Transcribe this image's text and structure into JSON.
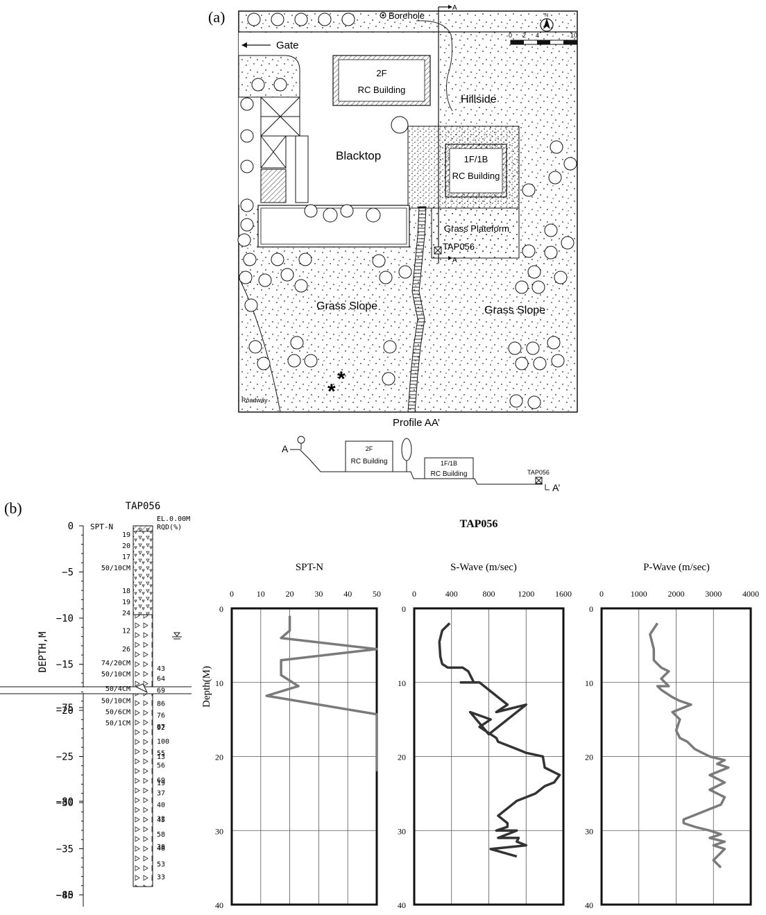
{
  "panel_a": {
    "label": "(a)",
    "map": {
      "borehole": "Borehole",
      "section_marker": "A",
      "gate": "Gate",
      "north": "N",
      "scale_ticks": [
        "0",
        "2",
        "4",
        "10"
      ],
      "building_2f": {
        "line1": "2F",
        "line2": "RC Building"
      },
      "hillside": "Hillside",
      "blacktop": "Blacktop",
      "building_1f": {
        "line1": "1F/1B",
        "line2": "RC Building"
      },
      "grass_plateform": "Grass Plateform",
      "tap": "TAP056",
      "grass_slope_left": "Grass Slope",
      "grass_slope_right": "Grass Slope",
      "roadway": "Roadway"
    },
    "profile": {
      "title": "Profile AA’",
      "a_label": "A",
      "a_prime_label": "A’",
      "building_2f": {
        "line1": "2F",
        "line2": "RC Building"
      },
      "building_1f": {
        "line1": "1F/1B",
        "line2": "RC Building"
      },
      "tap": "TAP056"
    }
  },
  "panel_b": {
    "label": "(b)",
    "borelog": {
      "title": "TAP056",
      "spt_label": "SPT-N",
      "el_label": "EL.0.00M",
      "rqd_label": "RQD(%)",
      "axis_label": "DEPTH,M",
      "upper_depth_ticks": [
        "0",
        "−5",
        "−10",
        "−15",
        "−20",
        "−25",
        "−30",
        "−35",
        "−40"
      ],
      "lower_depth_ticks": [
        "−75",
        "−80",
        "−85"
      ],
      "left_values": [
        {
          "text": "19",
          "depth": -0.9
        },
        {
          "text": "20",
          "depth": -2.1
        },
        {
          "text": "17",
          "depth": -3.3
        },
        {
          "text": "50/10CM",
          "depth": -4.5
        },
        {
          "text": "18",
          "depth": -7.0
        },
        {
          "text": "19",
          "depth": -8.2
        },
        {
          "text": "24",
          "depth": -9.4
        },
        {
          "text": "12",
          "depth": -11.3
        },
        {
          "text": "26",
          "depth": -13.3
        },
        {
          "text": "74/20CM",
          "depth": -14.8
        },
        {
          "text": "50/10CM",
          "depth": -16.0
        },
        {
          "text": "50/4CM",
          "depth": -17.6
        },
        {
          "text": "50/10CM",
          "depth": -18.9
        },
        {
          "text": "50/6CM",
          "depth": -20.1
        },
        {
          "text": "50/1CM",
          "depth": -21.3
        }
      ],
      "rqd_values_upper": [
        {
          "text": "43",
          "depth": -15.4
        },
        {
          "text": "64",
          "depth": -16.5
        },
        {
          "text": "69",
          "depth": -17.8
        },
        {
          "text": "86",
          "depth": -19.2
        },
        {
          "text": "76",
          "depth": -20.5
        },
        {
          "text": "92",
          "depth": -21.8
        },
        {
          "text": "100",
          "depth": -23.3
        },
        {
          "text": "55",
          "depth": -24.6
        },
        {
          "text": "56",
          "depth": -25.9
        },
        {
          "text": "69",
          "depth": -27.5
        },
        {
          "text": "37",
          "depth": -28.9
        },
        {
          "text": "40",
          "depth": -30.2
        },
        {
          "text": "45",
          "depth": -31.8
        },
        {
          "text": "58",
          "depth": -33.4
        },
        {
          "text": "48",
          "depth": -34.9
        },
        {
          "text": "53",
          "depth": -36.6
        },
        {
          "text": "33",
          "depth": -38.0
        }
      ],
      "rqd_values_lower": [
        {
          "text": "87",
          "depth": -76.0
        },
        {
          "text": "13",
          "depth": -77.6
        },
        {
          "text": "19",
          "depth": -79.0
        },
        {
          "text": "32",
          "depth": -80.9
        },
        {
          "text": "38",
          "depth": -82.4
        }
      ]
    },
    "chart_header": "TAP056"
  },
  "chart_data": [
    {
      "type": "line",
      "title": "SPT-N",
      "ylabel": "Depth(M)",
      "xlim": [
        0,
        50
      ],
      "ylim": [
        0,
        40
      ],
      "x_ticks": [
        "0",
        "10",
        "20",
        "30",
        "40",
        "50"
      ],
      "y_ticks": [
        "0",
        "10",
        "20",
        "30",
        "40"
      ],
      "grid": true,
      "y_inverted": true,
      "series": [
        {
          "x": [
            20,
            20,
            17,
            50,
            17,
            17,
            23,
            12,
            50,
            50,
            50
          ],
          "y": [
            1,
            3,
            4,
            5.5,
            7,
            9,
            10.5,
            11.8,
            14.3,
            20,
            22
          ]
        }
      ]
    },
    {
      "type": "line",
      "title": "S-Wave (m/sec)",
      "xlim": [
        0,
        1600
      ],
      "ylim": [
        0,
        40
      ],
      "x_ticks": [
        "0",
        "400",
        "800",
        "1200",
        "1600"
      ],
      "y_ticks": [
        "0",
        "10",
        "20",
        "30",
        "40"
      ],
      "grid": true,
      "y_inverted": true,
      "series": [
        {
          "x": [
            380,
            300,
            270,
            280,
            300,
            360,
            520,
            580,
            600,
            640,
            500,
            700,
            900,
            1000,
            880,
            1200,
            800,
            600,
            820,
            700,
            880,
            900,
            1000,
            1100,
            1200,
            1380,
            1400,
            1560,
            1500,
            1400,
            1300,
            1100,
            1000,
            900,
            1000,
            1000,
            880,
            1100,
            900,
            1120,
            1100,
            1200,
            820,
            1100
          ],
          "y": [
            2.0,
            3.0,
            4.5,
            6.5,
            7.5,
            8.0,
            8.0,
            8.5,
            9.0,
            10.0,
            10.0,
            10.0,
            12.0,
            13.0,
            14.0,
            13.0,
            17.0,
            14.0,
            15.0,
            16.0,
            17.5,
            18.0,
            18.5,
            19.0,
            19.5,
            20.0,
            21.5,
            22.5,
            23.5,
            24.0,
            25.0,
            26.0,
            27.0,
            28.0,
            29.0,
            29.5,
            30.0,
            30.0,
            31.0,
            31.0,
            31.5,
            32.0,
            32.5,
            33.5
          ]
        }
      ]
    },
    {
      "type": "line",
      "title": "P-Wave (m/sec)",
      "xlim": [
        0,
        4000
      ],
      "ylim": [
        0,
        40
      ],
      "x_ticks": [
        "0",
        "1000",
        "2000",
        "3000",
        "4000"
      ],
      "y_ticks": [
        "0",
        "10",
        "20",
        "30",
        "40"
      ],
      "grid": true,
      "y_inverted": true,
      "series": [
        {
          "x": [
            1500,
            1300,
            1400,
            1400,
            1500,
            1600,
            1800,
            1600,
            1800,
            1500,
            1600,
            1900,
            2100,
            2400,
            1900,
            2100,
            2000,
            2100,
            2300,
            2500,
            2700,
            2900,
            3300,
            3100,
            3400,
            2900,
            3300,
            2900,
            3300,
            3200,
            2700,
            2200,
            2200,
            2500,
            2900,
            3200,
            2900,
            3300,
            3000,
            3300,
            3200,
            3000,
            3200
          ],
          "y": [
            2.0,
            3.5,
            5.5,
            7.0,
            7.5,
            8.0,
            8.5,
            9.5,
            10.5,
            10.5,
            11.0,
            12.0,
            12.5,
            13.0,
            14.0,
            15.0,
            16.5,
            17.5,
            18.0,
            19.0,
            19.5,
            20.0,
            20.5,
            21.0,
            21.5,
            22.5,
            23.5,
            24.5,
            25.5,
            26.5,
            27.5,
            28.5,
            29.0,
            29.5,
            30.0,
            30.5,
            31.0,
            31.5,
            32.0,
            32.5,
            33.0,
            34.0,
            35.0
          ]
        }
      ]
    }
  ]
}
